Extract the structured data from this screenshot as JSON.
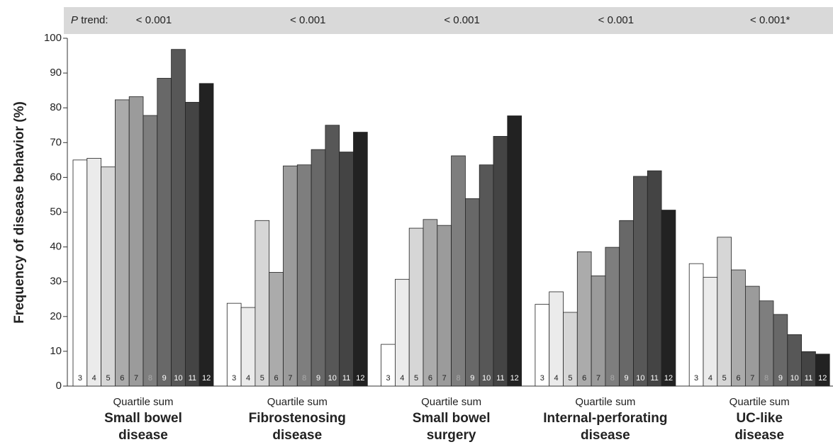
{
  "chart_data": {
    "type": "bar",
    "y_label": "Frequency of disease behavior (%)",
    "group_sublabel": "Quartile sum",
    "categories": [
      [
        "Small bowel",
        "disease"
      ],
      [
        "Fibrostenosing",
        "disease"
      ],
      [
        "Small bowel",
        "surgery"
      ],
      [
        "Internal-perforating",
        "disease"
      ],
      [
        "UC-like",
        "disease"
      ]
    ],
    "p_trend_label": {
      "italic": "P",
      "text": "trend:"
    },
    "p_trend": [
      "< 0.001",
      "< 0.001",
      "< 0.001",
      "< 0.001",
      "< 0.001*"
    ],
    "series": [
      {
        "name": "3",
        "color": "#ffffff",
        "values": [
          65,
          23.8,
          12,
          23.5,
          35.2
        ]
      },
      {
        "name": "4",
        "color": "#ebebeb",
        "values": [
          65.5,
          22.6,
          30.7,
          27.1,
          31.3
        ]
      },
      {
        "name": "5",
        "color": "#d6d6d6",
        "values": [
          63,
          47.6,
          45.4,
          21.2,
          42.8
        ]
      },
      {
        "name": "6",
        "color": "#ababab",
        "values": [
          82.3,
          32.7,
          47.9,
          38.6,
          33.4
        ]
      },
      {
        "name": "7",
        "color": "#9b9b9b",
        "values": [
          83.2,
          63.3,
          46.2,
          31.7,
          28.7
        ]
      },
      {
        "name": "8",
        "color": "#7e7e7e",
        "values": [
          77.8,
          63.6,
          66.2,
          39.9,
          24.5
        ]
      },
      {
        "name": "9",
        "color": "#686868",
        "values": [
          88.5,
          68,
          53.9,
          47.6,
          20.6
        ]
      },
      {
        "name": "10",
        "color": "#575757",
        "values": [
          96.8,
          75,
          63.6,
          60.3,
          14.8
        ]
      },
      {
        "name": "11",
        "color": "#444444",
        "values": [
          81.6,
          67.3,
          71.8,
          61.9,
          9.9
        ]
      },
      {
        "name": "12",
        "color": "#222222",
        "values": [
          87,
          73,
          77.7,
          50.6,
          9.2
        ]
      }
    ],
    "ylim": [
      0,
      100
    ],
    "yticks": [
      0,
      10,
      20,
      30,
      40,
      50,
      60,
      70,
      80,
      90,
      100
    ]
  }
}
